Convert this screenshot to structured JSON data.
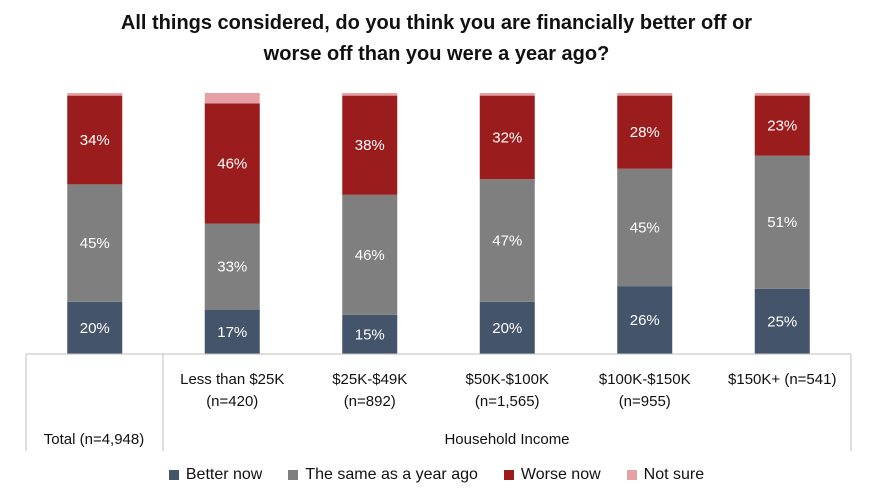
{
  "chart_data": {
    "type": "bar",
    "stacked": true,
    "title_line1": "All things considered, do you think you are financially better off or",
    "title_line2": "worse off than you were a year ago?",
    "categories": [
      {
        "line1": "",
        "line2": ""
      },
      {
        "line1": "Less than $25K",
        "line2": "(n=420)"
      },
      {
        "line1": "$25K-$49K",
        "line2": "(n=892)"
      },
      {
        "line1": "$50K-$100K",
        "line2": "(n=1,565)"
      },
      {
        "line1": "$100K-$150K",
        "line2": "(n=955)"
      },
      {
        "line1": "$150K+ (n=541)",
        "line2": ""
      }
    ],
    "group_labels": {
      "total": "Total (n=4,948)",
      "income": "Household Income"
    },
    "series": [
      {
        "name": "Better now",
        "color": "#44546a",
        "values": [
          20,
          17,
          15,
          20,
          26,
          25
        ],
        "labels": [
          "20%",
          "17%",
          "15%",
          "20%",
          "26%",
          "25%"
        ]
      },
      {
        "name": "The same as a year ago",
        "color": "#7f7f7f",
        "values": [
          45,
          33,
          46,
          47,
          45,
          51
        ],
        "labels": [
          "45%",
          "33%",
          "46%",
          "47%",
          "45%",
          "51%"
        ]
      },
      {
        "name": "Worse now",
        "color": "#9b1c1c",
        "values": [
          34,
          46,
          38,
          32,
          28,
          23
        ],
        "labels": [
          "34%",
          "46%",
          "38%",
          "32%",
          "28%",
          "23%"
        ]
      },
      {
        "name": "Not sure",
        "color": "#e6a0a3",
        "values": [
          1,
          4,
          1,
          1,
          1,
          1
        ],
        "labels": [
          "",
          "",
          "",
          "",
          "",
          ""
        ]
      }
    ],
    "ylim": [
      0,
      100
    ]
  }
}
